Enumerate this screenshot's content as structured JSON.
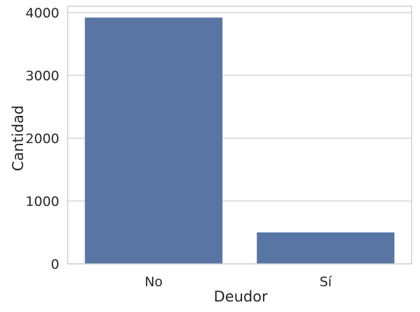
{
  "chart_data": {
    "type": "bar",
    "categories": [
      "No",
      "Sí"
    ],
    "values": [
      3920,
      500
    ],
    "title": "",
    "xlabel": "Deudor",
    "ylabel": "Cantidad",
    "ylim": [
      0,
      4100
    ],
    "yticks": [
      0,
      1000,
      2000,
      3000,
      4000
    ],
    "ytick_labels": [
      "0",
      "1000",
      "2000",
      "3000",
      "4000"
    ],
    "grid": "horizontal",
    "bar_color": "#5875a4",
    "grid_color": "#cccccc",
    "text_color": "#262626"
  }
}
